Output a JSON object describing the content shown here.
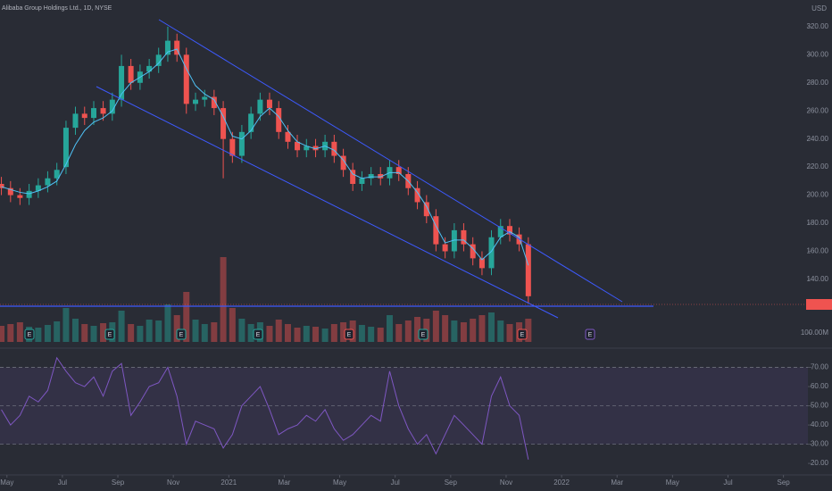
{
  "chart_data": {
    "type": "candlestick",
    "title": "Alibaba Group Holdings Ltd., 1D, NYSE",
    "currency": "USD",
    "x": [
      0.8,
      1.13,
      1.47,
      1.8,
      2.13,
      2.47,
      2.8,
      3.13,
      3.47,
      3.8,
      4.13,
      4.47,
      4.8,
      5.13,
      5.47,
      5.8,
      6.13,
      6.47,
      6.8,
      7.13,
      7.47,
      7.8,
      8.13,
      8.47,
      8.8,
      9.13,
      9.47,
      9.8,
      10.13,
      10.47,
      10.8,
      11.13,
      11.47,
      11.8,
      12.13,
      12.47,
      12.8,
      13.13,
      13.47,
      13.8,
      14.13,
      14.47,
      14.8,
      15.13,
      15.47,
      15.8,
      16.13,
      16.47,
      16.8,
      17.13,
      17.47,
      17.8,
      18.13,
      18.47,
      18.8,
      19.13,
      19.47,
      19.8
    ],
    "open": [
      208,
      205,
      200,
      198,
      203,
      207,
      212,
      220,
      248,
      258,
      255,
      262,
      258,
      268,
      292,
      280,
      288,
      292,
      300,
      310,
      300,
      265,
      268,
      270,
      262,
      240,
      228,
      245,
      258,
      268,
      262,
      245,
      238,
      232,
      235,
      232,
      238,
      228,
      218,
      208,
      212,
      215,
      212,
      220,
      215,
      205,
      195,
      185,
      165,
      160,
      175,
      165,
      155,
      148,
      170,
      178,
      172,
      165
    ],
    "high": [
      213,
      210,
      205,
      208,
      212,
      217,
      223,
      253,
      263,
      263,
      267,
      267,
      273,
      300,
      297,
      293,
      297,
      305,
      320,
      315,
      305,
      273,
      275,
      275,
      267,
      245,
      250,
      263,
      273,
      273,
      267,
      250,
      243,
      240,
      240,
      243,
      243,
      233,
      223,
      217,
      220,
      220,
      225,
      225,
      220,
      210,
      200,
      190,
      170,
      180,
      180,
      170,
      160,
      175,
      183,
      183,
      177,
      170
    ],
    "low": [
      200,
      195,
      193,
      193,
      198,
      202,
      207,
      215,
      243,
      250,
      250,
      253,
      253,
      263,
      275,
      275,
      283,
      287,
      295,
      295,
      258,
      260,
      263,
      257,
      212,
      223,
      223,
      240,
      253,
      257,
      240,
      233,
      227,
      227,
      227,
      227,
      223,
      213,
      203,
      203,
      207,
      207,
      207,
      210,
      200,
      190,
      180,
      160,
      155,
      155,
      160,
      150,
      143,
      143,
      165,
      167,
      160,
      123
    ],
    "close": [
      205,
      200,
      198,
      203,
      207,
      212,
      218,
      248,
      258,
      255,
      262,
      258,
      268,
      292,
      280,
      288,
      292,
      300,
      310,
      300,
      265,
      268,
      270,
      262,
      240,
      228,
      245,
      258,
      268,
      262,
      245,
      238,
      232,
      235,
      232,
      238,
      228,
      218,
      208,
      212,
      215,
      212,
      220,
      215,
      205,
      195,
      185,
      165,
      160,
      175,
      165,
      155,
      148,
      170,
      178,
      172,
      165,
      128
    ],
    "ma": {
      "color": "#4fc3f7",
      "values": [
        206,
        204,
        202,
        201,
        203,
        206,
        210,
        222,
        236,
        246,
        252,
        255,
        260,
        272,
        280,
        284,
        288,
        294,
        302,
        304,
        290,
        278,
        272,
        268,
        256,
        242,
        240,
        246,
        256,
        262,
        256,
        246,
        238,
        235,
        233,
        235,
        232,
        225,
        215,
        212,
        213,
        213,
        216,
        216,
        210,
        202,
        192,
        178,
        166,
        168,
        168,
        162,
        154,
        160,
        170,
        174,
        170,
        150
      ]
    },
    "volume": [
      180,
      200,
      220,
      170,
      160,
      190,
      230,
      380,
      260,
      200,
      180,
      210,
      220,
      350,
      200,
      180,
      250,
      240,
      420,
      300,
      560,
      250,
      200,
      220,
      950,
      380,
      260,
      200,
      220,
      180,
      250,
      200,
      160,
      180,
      170,
      150,
      200,
      220,
      240,
      190,
      170,
      160,
      300,
      200,
      240,
      280,
      260,
      350,
      300,
      240,
      220,
      260,
      300,
      330,
      240,
      200,
      220,
      260
    ],
    "rsi": {
      "color": "#7e57c2",
      "values": [
        48,
        40,
        45,
        55,
        52,
        58,
        75,
        68,
        62,
        60,
        65,
        55,
        68,
        72,
        45,
        52,
        60,
        62,
        70,
        55,
        30,
        42,
        40,
        38,
        28,
        35,
        50,
        55,
        60,
        48,
        35,
        38,
        40,
        45,
        42,
        48,
        38,
        32,
        35,
        40,
        45,
        42,
        68,
        50,
        38,
        30,
        35,
        25,
        35,
        45,
        40,
        35,
        30,
        55,
        65,
        50,
        45,
        22
      ]
    },
    "up_color": "#26a69a",
    "down_color": "#ef5350",
    "events": [
      "E",
      "E",
      "E",
      "E",
      "E",
      "E",
      "E",
      "E"
    ],
    "xlim": [
      0.75,
      30.75
    ],
    "xticks": [
      {
        "value": 1,
        "label": "May"
      },
      {
        "value": 3,
        "label": "Jul"
      },
      {
        "value": 5,
        "label": "Sep"
      },
      {
        "value": 7,
        "label": "Nov"
      },
      {
        "value": 9,
        "label": "2021"
      },
      {
        "value": 11,
        "label": "Mar"
      },
      {
        "value": 13,
        "label": "May"
      },
      {
        "value": 15,
        "label": "Jul"
      },
      {
        "value": 17,
        "label": "Sep"
      },
      {
        "value": 19,
        "label": "Nov"
      },
      {
        "value": 21,
        "label": "2022"
      },
      {
        "value": 23,
        "label": "Mar"
      },
      {
        "value": 25,
        "label": "May"
      },
      {
        "value": 27,
        "label": "Jul"
      },
      {
        "value": 29,
        "label": "Sep"
      }
    ],
    "ylim": [
      91,
      339
    ],
    "yticks": [
      {
        "value": 320,
        "label": "320.00"
      },
      {
        "value": 300,
        "label": "300.00"
      },
      {
        "value": 280,
        "label": "280.00"
      },
      {
        "value": 260,
        "label": "260.00"
      },
      {
        "value": 240,
        "label": "240.00"
      },
      {
        "value": 220,
        "label": "220.00"
      },
      {
        "value": 200,
        "label": "200.00"
      },
      {
        "value": 180,
        "label": "180.00"
      },
      {
        "value": 160,
        "label": "160.00"
      },
      {
        "value": 140,
        "label": "140.00"
      }
    ],
    "vlim": [
      0,
      1000
    ],
    "vticks": [
      {
        "value": 100,
        "label": "100.00M"
      }
    ],
    "rlim": [
      14,
      80
    ],
    "rticks": [
      {
        "value": 70,
        "label": "70.00"
      },
      {
        "value": 60,
        "label": "60.00"
      },
      {
        "value": 50,
        "label": "50.00"
      },
      {
        "value": 40,
        "label": "40.00"
      },
      {
        "value": 30,
        "label": "30.00"
      },
      {
        "value": 20,
        "label": "20.00"
      }
    ]
  }
}
